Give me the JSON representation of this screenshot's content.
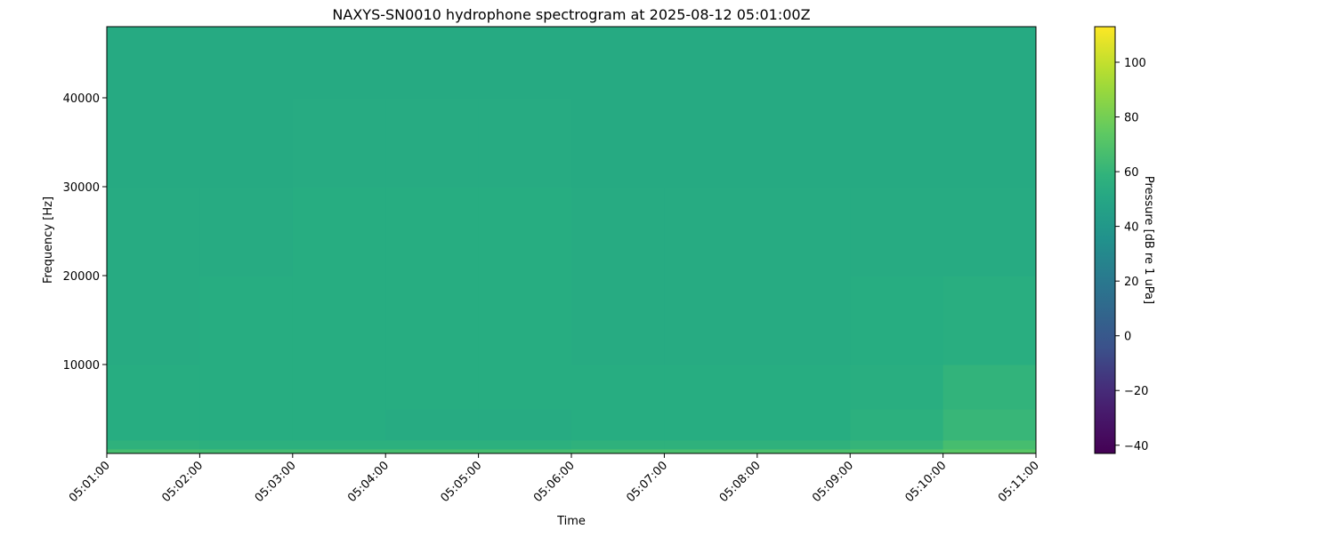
{
  "chart_data": {
    "type": "heatmap",
    "title": "NAXYS-SN0010 hydrophone spectrogram at 2025-08-12 05:01:00Z",
    "xlabel": "Time",
    "ylabel": "Frequency [Hz]",
    "colorbar_label": "Pressure [dB re 1 uPa]",
    "colormap": "viridis",
    "clim": [
      -43,
      113
    ],
    "ylim": [
      0,
      48000
    ],
    "xlim": [
      "05:01:00",
      "05:11:00"
    ],
    "x_ticks": [
      "05:01:00",
      "05:02:00",
      "05:03:00",
      "05:04:00",
      "05:05:00",
      "05:06:00",
      "05:07:00",
      "05:08:00",
      "05:09:00",
      "05:10:00",
      "05:11:00"
    ],
    "y_ticks": [
      10000,
      20000,
      30000,
      40000
    ],
    "colorbar_ticks": [
      -40,
      -20,
      0,
      20,
      40,
      60,
      80,
      100
    ],
    "time_bins": [
      "05:01",
      "05:02",
      "05:03",
      "05:04",
      "05:05",
      "05:06",
      "05:07",
      "05:08",
      "05:09",
      "05:10"
    ],
    "freq_bin_edges": [
      0,
      500,
      1500,
      5000,
      10000,
      20000,
      30000,
      40000,
      48000
    ],
    "values": [
      [
        66,
        65,
        65,
        66,
        66,
        67,
        67,
        68,
        69,
        72
      ],
      [
        58,
        57,
        57,
        57,
        57,
        58,
        58,
        58,
        60,
        66
      ],
      [
        55,
        55,
        55,
        54,
        54,
        55,
        55,
        55,
        57,
        61
      ],
      [
        55,
        55,
        55,
        55,
        55,
        55,
        55,
        55,
        56,
        59
      ],
      [
        54,
        55,
        55,
        55,
        55,
        54,
        54,
        54,
        55,
        56
      ],
      [
        54,
        54,
        55,
        55,
        55,
        54,
        54,
        54,
        54,
        54
      ],
      [
        53,
        53,
        54,
        54,
        54,
        53,
        53,
        53,
        53,
        53
      ],
      [
        53,
        53,
        53,
        53,
        53,
        53,
        53,
        53,
        53,
        53
      ]
    ]
  }
}
